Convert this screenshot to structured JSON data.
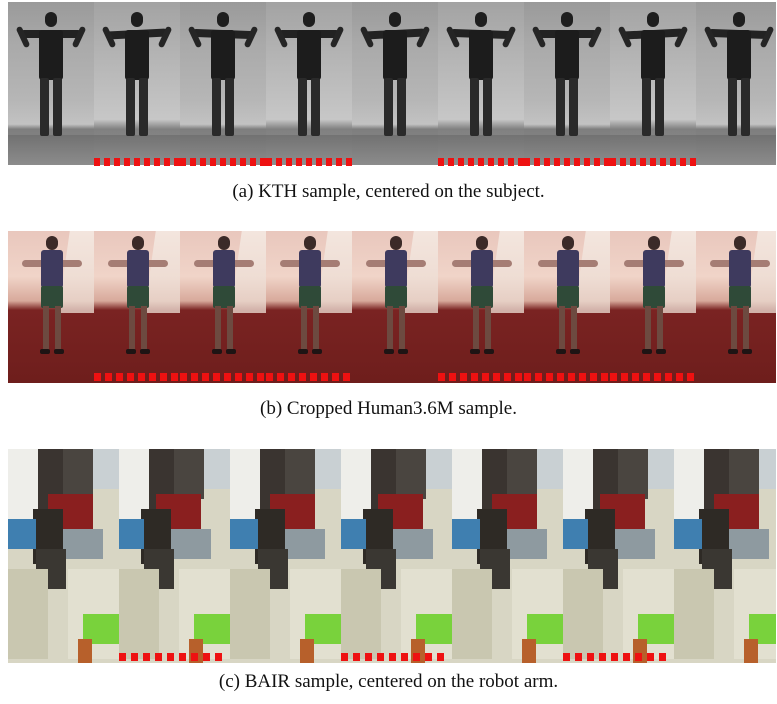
{
  "figure": {
    "panels": [
      {
        "id": "kth",
        "caption": "(a)  KTH sample, centered on the subject.",
        "frame_count": 9,
        "marker_color": "#ee1111",
        "marked_frames": [
          1,
          2,
          3,
          5,
          6,
          7
        ]
      },
      {
        "id": "h36m",
        "caption": "(b)  Cropped Human3.6M sample.",
        "frame_count": 9,
        "marker_color": "#ee1111",
        "marked_frames": [
          1,
          2,
          3,
          5,
          6,
          7
        ]
      },
      {
        "id": "bair",
        "caption": "(c)  BAIR sample, centered on the robot arm.",
        "frame_count": 7,
        "marker_color": "#ee1111",
        "marked_frames": [
          1,
          3,
          5
        ]
      }
    ]
  }
}
